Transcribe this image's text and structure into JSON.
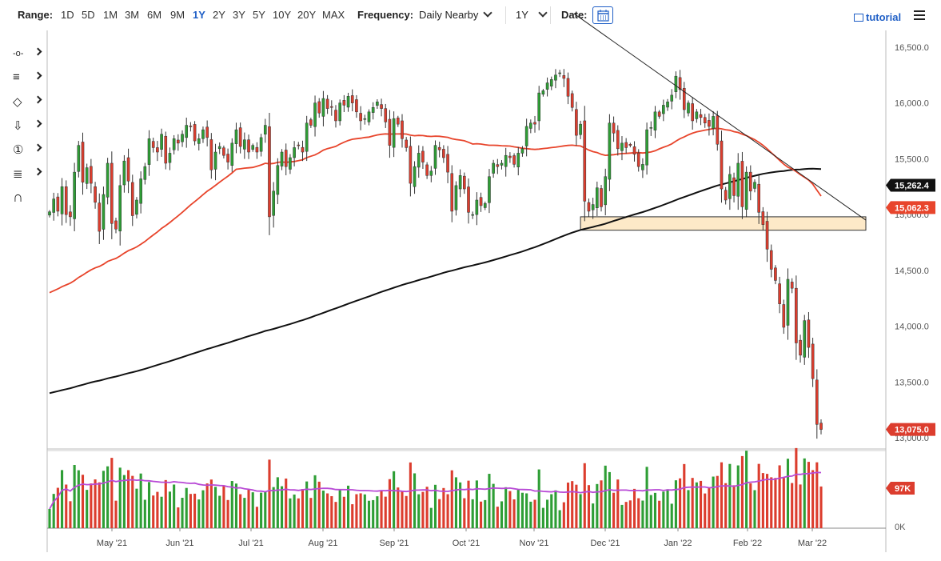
{
  "toolbar": {
    "range_label": "Range:",
    "ranges": [
      "1D",
      "5D",
      "1M",
      "3M",
      "6M",
      "9M",
      "1Y",
      "2Y",
      "3Y",
      "5Y",
      "10Y",
      "20Y",
      "MAX"
    ],
    "active_range": "1Y",
    "frequency_label": "Frequency:",
    "frequency_value": "Daily Nearby",
    "period_value": "1Y",
    "date_label": "Date:",
    "tutorial_label": "tutorial"
  },
  "left_tools": [
    {
      "name": "crosshair-tool",
      "glyph": "-o-"
    },
    {
      "name": "indicators-tool",
      "glyph": "≡"
    },
    {
      "name": "shapes-tool",
      "glyph": "◇"
    },
    {
      "name": "arrow-down-tool",
      "glyph": "⇩"
    },
    {
      "name": "number-tool",
      "glyph": "①"
    },
    {
      "name": "lines-tool",
      "glyph": "≣"
    },
    {
      "name": "magnet-tool",
      "glyph": "∩"
    }
  ],
  "colors": {
    "up": "#2e9e35",
    "down": "#dc3d2e",
    "ma_red": "#e8452c",
    "ma_black": "#111111",
    "vol_avg": "#b84ad6",
    "zone_fill": "#fde9c8",
    "zone_stroke": "#333333",
    "accent": "#1f5fc6"
  },
  "chart_data": {
    "type": "candlestick",
    "instrument_note": "",
    "y_ticks": [
      "16,500.0",
      "16,000.0",
      "15,500.0",
      "15,000.0",
      "14,500.0",
      "14,000.0",
      "13,500.0",
      "13,000.0"
    ],
    "y_tick_values": [
      16500,
      16000,
      15500,
      15000,
      14500,
      14000,
      13500,
      13000
    ],
    "ylim": [
      12900,
      16650
    ],
    "x_ticks": [
      "May '21",
      "Jun '21",
      "Jul '21",
      "Aug '21",
      "Sep '21",
      "Oct '21",
      "Nov '21",
      "Dec '21",
      "Jan '22",
      "Feb '22",
      "Mar '22"
    ],
    "last_price": "13,075.0",
    "ma_short_label": "15,062.3",
    "ma_long_label": "15,262.4",
    "volume_badge": "97K",
    "volume_zero": "0K",
    "support_zone": [
      14860,
      14980
    ],
    "trendline": {
      "from_date": "Nov '21",
      "to_date": "Mar '22",
      "from_value": 16800,
      "to_value": 14950
    },
    "closes": [
      15025,
      15140,
      15030,
      15250,
      15000,
      14980,
      15380,
      15620,
      15290,
      15420,
      15280,
      15110,
      14850,
      15180,
      15460,
      14920,
      14870,
      15260,
      15480,
      15300,
      14990,
      15130,
      15320,
      15430,
      15680,
      15600,
      15560,
      15720,
      15460,
      15550,
      15680,
      15640,
      15720,
      15800,
      15790,
      15660,
      15680,
      15760,
      15690,
      15400,
      15560,
      15610,
      15530,
      15470,
      15640,
      15760,
      15610,
      15670,
      15560,
      15620,
      15560,
      15690,
      15800,
      14980,
      15210,
      15440,
      15560,
      15430,
      15510,
      15600,
      15620,
      15560,
      15820,
      15800,
      16000,
      15910,
      16040,
      15950,
      15960,
      15840,
      16000,
      15980,
      16060,
      16000,
      15920,
      15840,
      15860,
      15920,
      15960,
      16010,
      15950,
      15830,
      15620,
      15860,
      15810,
      15680,
      15600,
      15280,
      15430,
      15550,
      15470,
      15350,
      15390,
      15620,
      15580,
      15510,
      15380,
      15030,
      15260,
      15350,
      15230,
      15020,
      15000,
      15130,
      15080,
      15100,
      15340,
      15460,
      15430,
      15460,
      15530,
      15510,
      15450,
      15550,
      15590,
      15790,
      15820,
      15810,
      16090,
      16110,
      16180,
      16210,
      16250,
      16270,
      16220,
      16060,
      15960,
      15710,
      15810,
      15120,
      15030,
      15090,
      15240,
      15070,
      15340,
      15820,
      15730,
      15590,
      15640,
      15600,
      15620,
      15540,
      15430,
      15450,
      15760,
      15780,
      15920,
      15880,
      15980,
      16010,
      16070,
      16240,
      16120,
      15940,
      16000,
      15840,
      15920,
      15870,
      15820,
      15790,
      15880,
      15630,
      15230,
      15130,
      15360,
      15170,
      15460,
      15070,
      15380,
      15210,
      15290,
      15020,
      14910,
      14690,
      14510,
      14410,
      14200,
      13990,
      14420,
      14340,
      13850,
      13740,
      14050,
      13810,
      13530,
      13120,
      13075
    ]
  }
}
